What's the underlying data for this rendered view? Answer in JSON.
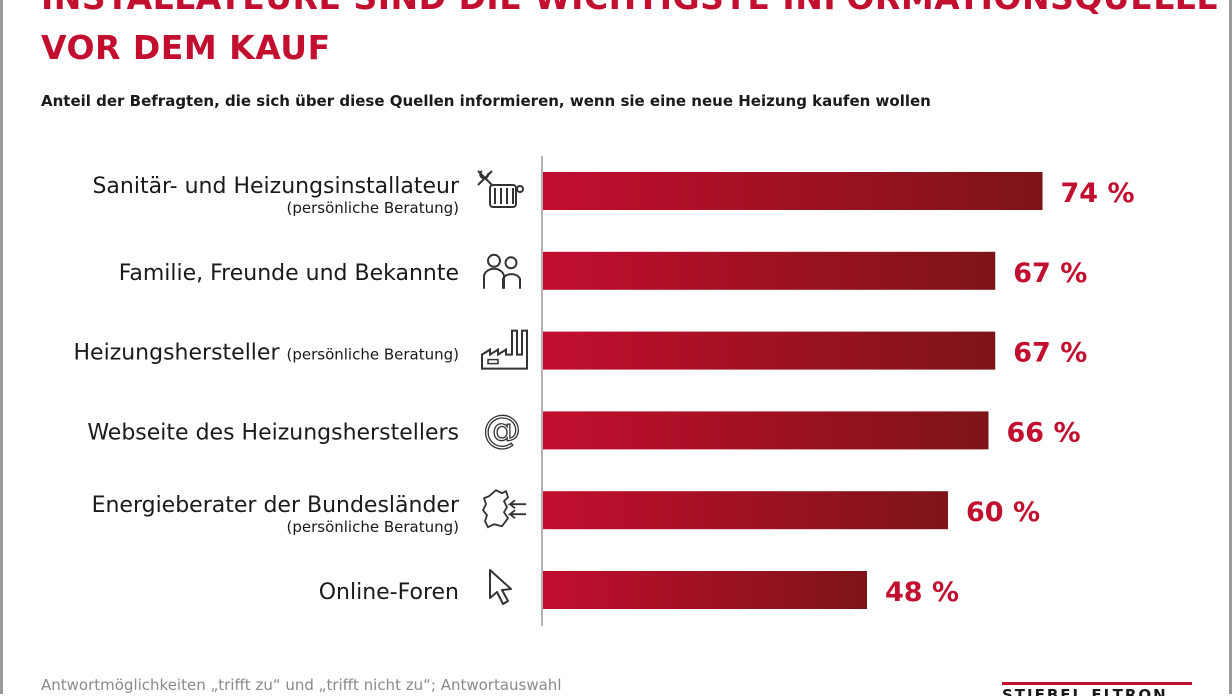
{
  "header": {
    "title_line1": "INSTALLATEURE SIND DIE WICHTIGSTE INFORMATIONSQUELLE",
    "title_line2": "VOR DEM KAUF",
    "subtitle": "Anteil der Befragten, die sich über diese Quellen informieren, wenn sie eine neue Heizung kaufen wollen"
  },
  "footnote": "Antwortmöglichkeiten „trifft zu“ und „trifft nicht zu“; Antwortauswahl",
  "logo_text": "STIEBEL ELTRON",
  "colors": {
    "title": "#c20e2f",
    "value_label": "#c20e2f",
    "bar_start": "#c20e2f",
    "bar_end": "#7d1417",
    "axis": "#999999"
  },
  "chart_data": {
    "type": "bar",
    "orientation": "horizontal",
    "value_suffix": " %",
    "xlim": [
      0,
      100
    ],
    "grid": false,
    "categories": [
      {
        "label": "Sanitär- und Heizungsinstallateur",
        "note": "(persönliche Beratung)",
        "note_inline": false,
        "icon": "tools-radiator-icon",
        "value": 74
      },
      {
        "label": "Familie, Freunde und Bekannte",
        "note": "",
        "note_inline": false,
        "icon": "people-icon",
        "value": 67
      },
      {
        "label": "Heizungshersteller",
        "note": "(persönliche Beratung)",
        "note_inline": true,
        "icon": "factory-icon",
        "value": 67
      },
      {
        "label": "Webseite des Heizungsherstellers",
        "note": "",
        "note_inline": false,
        "icon": "at-sign-icon",
        "value": 66
      },
      {
        "label": "Energieberater der Bundesländer",
        "note": "(persönliche Beratung)",
        "note_inline": false,
        "icon": "germany-map-icon",
        "value": 60
      },
      {
        "label": "Online-Foren",
        "note": "",
        "note_inline": false,
        "icon": "cursor-icon",
        "value": 48
      }
    ]
  }
}
